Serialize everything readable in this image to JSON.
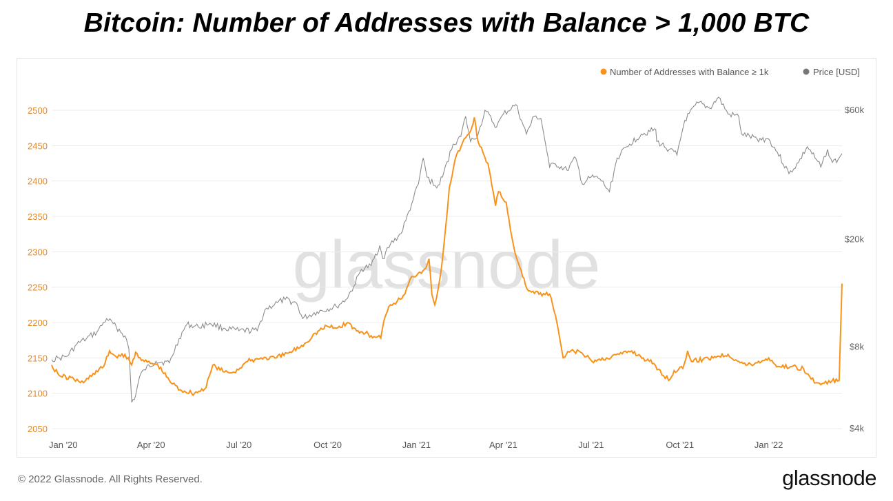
{
  "title": "Bitcoin: Number of Addresses with Balance > 1,000 BTC",
  "footer": "© 2022 Glassnode. All Rights Reserved.",
  "brand": "glassnode",
  "watermark": "glassnode",
  "colors": {
    "addresses": "#f7931a",
    "price": "#8c8c8c",
    "left_axis": "#e08a2e",
    "right_axis": "#666666",
    "grid": "#ececec"
  },
  "chart_data": {
    "type": "line",
    "title": "Bitcoin: Number of Addresses with Balance > 1,000 BTC",
    "legend": [
      "Number of Addresses with Balance ≥ 1k",
      "Price [USD]"
    ],
    "legend_position": "top-right",
    "grid": true,
    "x_range": [
      "2019-12-20",
      "2022-03-18"
    ],
    "x_ticks": [
      "Jan '20",
      "Apr '20",
      "Jul '20",
      "Oct '20",
      "Jan '21",
      "Apr '21",
      "Jul '21",
      "Oct '21",
      "Jan '22"
    ],
    "y_left": {
      "ylim": [
        2050,
        2500
      ],
      "ticks": [
        "2050",
        "2100",
        "2150",
        "2200",
        "2250",
        "2300",
        "2350",
        "2400",
        "2450",
        "2500"
      ]
    },
    "y_right": {
      "scale": "log",
      "ticks": [
        "$4k",
        "$8k",
        "$20k",
        "$60k"
      ]
    },
    "series": [
      {
        "name": "Number of Addresses with Balance ≥ 1k",
        "axis": "left",
        "color": "#f7931a",
        "points": [
          [
            "2019-12-20",
            2140
          ],
          [
            "2019-12-28",
            2125
          ],
          [
            "2020-01-12",
            2120
          ],
          [
            "2020-01-22",
            2115
          ],
          [
            "2020-02-01",
            2128
          ],
          [
            "2020-02-12",
            2138
          ],
          [
            "2020-02-18",
            2160
          ],
          [
            "2020-02-26",
            2150
          ],
          [
            "2020-03-05",
            2155
          ],
          [
            "2020-03-12",
            2140
          ],
          [
            "2020-03-16",
            2158
          ],
          [
            "2020-03-25",
            2145
          ],
          [
            "2020-04-08",
            2140
          ],
          [
            "2020-04-20",
            2118
          ],
          [
            "2020-05-01",
            2105
          ],
          [
            "2020-05-16",
            2100
          ],
          [
            "2020-05-28",
            2108
          ],
          [
            "2020-06-04",
            2140
          ],
          [
            "2020-06-16",
            2130
          ],
          [
            "2020-06-26",
            2130
          ],
          [
            "2020-07-10",
            2145
          ],
          [
            "2020-07-24",
            2150
          ],
          [
            "2020-08-09",
            2150
          ],
          [
            "2020-08-26",
            2160
          ],
          [
            "2020-09-07",
            2170
          ],
          [
            "2020-09-18",
            2185
          ],
          [
            "2020-09-30",
            2195
          ],
          [
            "2020-10-10",
            2192
          ],
          [
            "2020-10-22",
            2200
          ],
          [
            "2020-10-31",
            2188
          ],
          [
            "2020-11-09",
            2185
          ],
          [
            "2020-11-18",
            2180
          ],
          [
            "2020-11-25",
            2178
          ],
          [
            "2020-11-30",
            2210
          ],
          [
            "2020-12-05",
            2225
          ],
          [
            "2020-12-12",
            2230
          ],
          [
            "2020-12-20",
            2240
          ],
          [
            "2020-12-27",
            2265
          ],
          [
            "2021-01-03",
            2270
          ],
          [
            "2021-01-09",
            2275
          ],
          [
            "2021-01-14",
            2290
          ],
          [
            "2021-01-17",
            2240
          ],
          [
            "2021-01-20",
            2225
          ],
          [
            "2021-01-25",
            2260
          ],
          [
            "2021-01-28",
            2290
          ],
          [
            "2021-02-04",
            2390
          ],
          [
            "2021-02-10",
            2430
          ],
          [
            "2021-02-18",
            2455
          ],
          [
            "2021-02-26",
            2470
          ],
          [
            "2021-03-02",
            2490
          ],
          [
            "2021-03-06",
            2455
          ],
          [
            "2021-03-11",
            2440
          ],
          [
            "2021-03-16",
            2425
          ],
          [
            "2021-03-20",
            2395
          ],
          [
            "2021-03-24",
            2365
          ],
          [
            "2021-03-27",
            2385
          ],
          [
            "2021-04-04",
            2370
          ],
          [
            "2021-04-10",
            2320
          ],
          [
            "2021-04-15",
            2290
          ],
          [
            "2021-04-21",
            2265
          ],
          [
            "2021-04-27",
            2245
          ],
          [
            "2021-05-08",
            2240
          ],
          [
            "2021-05-19",
            2240
          ],
          [
            "2021-05-25",
            2210
          ],
          [
            "2021-06-02",
            2150
          ],
          [
            "2021-06-10",
            2160
          ],
          [
            "2021-06-20",
            2158
          ],
          [
            "2021-07-02",
            2145
          ],
          [
            "2021-07-17",
            2150
          ],
          [
            "2021-07-30",
            2155
          ],
          [
            "2021-08-12",
            2160
          ],
          [
            "2021-08-24",
            2150
          ],
          [
            "2021-09-04",
            2142
          ],
          [
            "2021-09-14",
            2125
          ],
          [
            "2021-09-21",
            2120
          ],
          [
            "2021-09-25",
            2132
          ],
          [
            "2021-10-04",
            2135
          ],
          [
            "2021-10-09",
            2160
          ],
          [
            "2021-10-13",
            2145
          ],
          [
            "2021-10-25",
            2148
          ],
          [
            "2021-11-06",
            2152
          ],
          [
            "2021-11-20",
            2155
          ],
          [
            "2021-12-01",
            2145
          ],
          [
            "2021-12-10",
            2140
          ],
          [
            "2021-12-20",
            2143
          ],
          [
            "2022-01-01",
            2150
          ],
          [
            "2022-01-11",
            2138
          ],
          [
            "2022-01-25",
            2138
          ],
          [
            "2022-02-06",
            2135
          ],
          [
            "2022-02-14",
            2120
          ],
          [
            "2022-02-24",
            2112
          ],
          [
            "2022-03-06",
            2115
          ],
          [
            "2022-03-12",
            2120
          ],
          [
            "2022-03-15",
            2118
          ],
          [
            "2022-03-18",
            2255
          ]
        ]
      },
      {
        "name": "Price [USD]",
        "axis": "right",
        "color": "#8c8c8c",
        "points": [
          [
            "2019-12-20",
            7200
          ],
          [
            "2019-12-28",
            7300
          ],
          [
            "2020-01-05",
            7400
          ],
          [
            "2020-01-15",
            8200
          ],
          [
            "2020-01-25",
            8600
          ],
          [
            "2020-02-05",
            9100
          ],
          [
            "2020-02-15",
            10200
          ],
          [
            "2020-02-25",
            9500
          ],
          [
            "2020-03-05",
            8800
          ],
          [
            "2020-03-09",
            7900
          ],
          [
            "2020-03-12",
            5000
          ],
          [
            "2020-03-16",
            5300
          ],
          [
            "2020-03-20",
            6200
          ],
          [
            "2020-03-25",
            6600
          ],
          [
            "2020-04-06",
            7100
          ],
          [
            "2020-04-20",
            7000
          ],
          [
            "2020-04-30",
            8600
          ],
          [
            "2020-05-08",
            9700
          ],
          [
            "2020-05-20",
            9500
          ],
          [
            "2020-06-01",
            9800
          ],
          [
            "2020-06-15",
            9400
          ],
          [
            "2020-07-01",
            9200
          ],
          [
            "2020-07-20",
            9200
          ],
          [
            "2020-07-28",
            11000
          ],
          [
            "2020-08-10",
            11700
          ],
          [
            "2020-08-18",
            12000
          ],
          [
            "2020-08-30",
            11600
          ],
          [
            "2020-09-05",
            10200
          ],
          [
            "2020-09-20",
            10800
          ],
          [
            "2020-10-10",
            11300
          ],
          [
            "2020-10-20",
            12000
          ],
          [
            "2020-10-28",
            13400
          ],
          [
            "2020-11-05",
            15500
          ],
          [
            "2020-11-15",
            16000
          ],
          [
            "2020-11-24",
            19000
          ],
          [
            "2020-11-27",
            17000
          ],
          [
            "2020-12-05",
            19200
          ],
          [
            "2020-12-16",
            21000
          ],
          [
            "2020-12-21",
            23500
          ],
          [
            "2020-12-27",
            27000
          ],
          [
            "2021-01-03",
            32000
          ],
          [
            "2021-01-08",
            40000
          ],
          [
            "2021-01-12",
            34000
          ],
          [
            "2021-01-22",
            31000
          ],
          [
            "2021-01-28",
            34000
          ],
          [
            "2021-02-08",
            45000
          ],
          [
            "2021-02-16",
            48000
          ],
          [
            "2021-02-21",
            57000
          ],
          [
            "2021-02-26",
            46000
          ],
          [
            "2021-03-06",
            49000
          ],
          [
            "2021-03-13",
            60000
          ],
          [
            "2021-03-25",
            52000
          ],
          [
            "2021-04-01",
            58000
          ],
          [
            "2021-04-14",
            63000
          ],
          [
            "2021-04-20",
            55000
          ],
          [
            "2021-04-25",
            49000
          ],
          [
            "2021-05-03",
            57000
          ],
          [
            "2021-05-10",
            56000
          ],
          [
            "2021-05-13",
            49000
          ],
          [
            "2021-05-19",
            37000
          ],
          [
            "2021-05-25",
            38000
          ],
          [
            "2021-06-06",
            36000
          ],
          [
            "2021-06-15",
            40000
          ],
          [
            "2021-06-22",
            32000
          ],
          [
            "2021-07-01",
            34000
          ],
          [
            "2021-07-10",
            33500
          ],
          [
            "2021-07-20",
            30000
          ],
          [
            "2021-07-28",
            40000
          ],
          [
            "2021-08-10",
            45000
          ],
          [
            "2021-08-22",
            49000
          ],
          [
            "2021-09-06",
            51000
          ],
          [
            "2021-09-07",
            46000
          ],
          [
            "2021-09-20",
            43000
          ],
          [
            "2021-09-28",
            41000
          ],
          [
            "2021-10-06",
            55000
          ],
          [
            "2021-10-20",
            64000
          ],
          [
            "2021-11-01",
            61000
          ],
          [
            "2021-11-10",
            67000
          ],
          [
            "2021-11-20",
            58000
          ],
          [
            "2021-12-01",
            57000
          ],
          [
            "2021-12-04",
            49000
          ],
          [
            "2021-12-20",
            47000
          ],
          [
            "2022-01-01",
            47000
          ],
          [
            "2022-01-10",
            42000
          ],
          [
            "2022-01-22",
            35000
          ],
          [
            "2022-02-01",
            38500
          ],
          [
            "2022-02-10",
            44000
          ],
          [
            "2022-02-18",
            40000
          ],
          [
            "2022-02-24",
            37000
          ],
          [
            "2022-03-03",
            43000
          ],
          [
            "2022-03-08",
            38500
          ],
          [
            "2022-03-14",
            39500
          ],
          [
            "2022-03-18",
            41500
          ]
        ]
      }
    ]
  }
}
